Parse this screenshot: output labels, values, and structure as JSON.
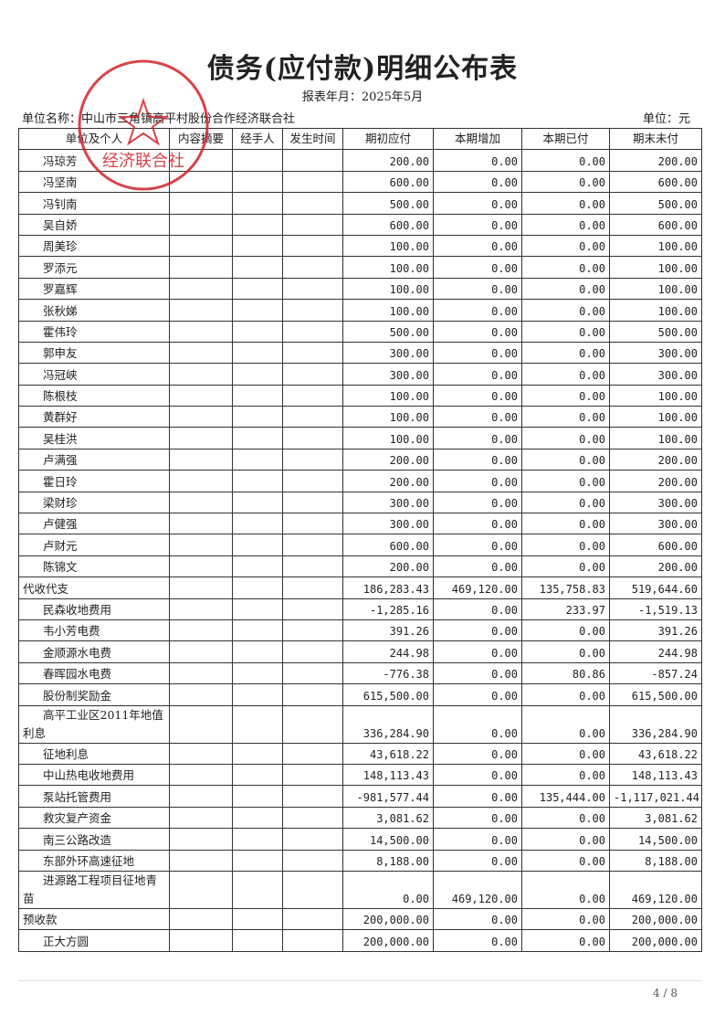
{
  "header": {
    "title": "债务(应付款)明细公布表",
    "period": "报表年月：2025年5月",
    "unit_name": "单位名称：中山市三角镇高平村股份合作经济联合社",
    "unit": "单位：元"
  },
  "seal": {
    "text": "经济联合社"
  },
  "table": {
    "columns": [
      "单位及个人",
      "内容摘要",
      "经手人",
      "发生时间",
      "期初应付",
      "本期增加",
      "本期已付",
      "期末未付"
    ],
    "continued_items": [
      {
        "name": "冯琼芳",
        "amounts": [
          "200.00",
          "0.00",
          "0.00",
          "200.00"
        ]
      },
      {
        "name": "冯坚南",
        "amounts": [
          "600.00",
          "0.00",
          "0.00",
          "600.00"
        ]
      },
      {
        "name": "冯钊南",
        "amounts": [
          "500.00",
          "0.00",
          "0.00",
          "500.00"
        ]
      },
      {
        "name": "吴自娇",
        "amounts": [
          "600.00",
          "0.00",
          "0.00",
          "600.00"
        ]
      },
      {
        "name": "周美珍",
        "amounts": [
          "100.00",
          "0.00",
          "0.00",
          "100.00"
        ]
      },
      {
        "name": "罗添元",
        "amounts": [
          "100.00",
          "0.00",
          "0.00",
          "100.00"
        ]
      },
      {
        "name": "罗嘉辉",
        "amounts": [
          "100.00",
          "0.00",
          "0.00",
          "100.00"
        ]
      },
      {
        "name": "张秋娣",
        "amounts": [
          "100.00",
          "0.00",
          "0.00",
          "100.00"
        ]
      },
      {
        "name": "霍伟玲",
        "amounts": [
          "500.00",
          "0.00",
          "0.00",
          "500.00"
        ]
      },
      {
        "name": "郭申友",
        "amounts": [
          "300.00",
          "0.00",
          "0.00",
          "300.00"
        ]
      },
      {
        "name": "冯冠峡",
        "amounts": [
          "300.00",
          "0.00",
          "0.00",
          "300.00"
        ]
      },
      {
        "name": "陈根枝",
        "amounts": [
          "100.00",
          "0.00",
          "0.00",
          "100.00"
        ]
      },
      {
        "name": "黄群好",
        "amounts": [
          "100.00",
          "0.00",
          "0.00",
          "100.00"
        ]
      },
      {
        "name": "吴桂洪",
        "amounts": [
          "100.00",
          "0.00",
          "0.00",
          "100.00"
        ]
      },
      {
        "name": "卢满强",
        "amounts": [
          "200.00",
          "0.00",
          "0.00",
          "200.00"
        ]
      },
      {
        "name": "霍日玲",
        "amounts": [
          "200.00",
          "0.00",
          "0.00",
          "200.00"
        ]
      },
      {
        "name": "梁财珍",
        "amounts": [
          "300.00",
          "0.00",
          "0.00",
          "300.00"
        ]
      },
      {
        "name": "卢健强",
        "amounts": [
          "300.00",
          "0.00",
          "0.00",
          "300.00"
        ]
      },
      {
        "name": "卢财元",
        "amounts": [
          "600.00",
          "0.00",
          "0.00",
          "600.00"
        ]
      },
      {
        "name": "陈锦文",
        "amounts": [
          "200.00",
          "0.00",
          "0.00",
          "200.00"
        ]
      }
    ],
    "sections": [
      {
        "name": "代收代支",
        "amounts": [
          "186,283.43",
          "469,120.00",
          "135,758.83",
          "519,644.60"
        ],
        "items": [
          {
            "name": "民森收地费用",
            "amounts": [
              "-1,285.16",
              "0.00",
              "233.97",
              "-1,519.13"
            ]
          },
          {
            "name": "韦小芳电费",
            "amounts": [
              "391.26",
              "0.00",
              "0.00",
              "391.26"
            ]
          },
          {
            "name": "金顺源水电费",
            "amounts": [
              "244.98",
              "0.00",
              "0.00",
              "244.98"
            ]
          },
          {
            "name": "春晖园水电费",
            "amounts": [
              "-776.38",
              "0.00",
              "80.86",
              "-857.24"
            ]
          },
          {
            "name": "股份制奖励金",
            "amounts": [
              "615,500.00",
              "0.00",
              "0.00",
              "615,500.00"
            ]
          },
          {
            "name": "高平工业区2011年地值利息",
            "amounts": [
              "336,284.90",
              "0.00",
              "0.00",
              "336,284.90"
            ]
          },
          {
            "name": "征地利息",
            "amounts": [
              "43,618.22",
              "0.00",
              "0.00",
              "43,618.22"
            ]
          },
          {
            "name": "中山热电收地费用",
            "amounts": [
              "148,113.43",
              "0.00",
              "0.00",
              "148,113.43"
            ]
          },
          {
            "name": "泵站托管费用",
            "amounts": [
              "-981,577.44",
              "0.00",
              "135,444.00",
              "-1,117,021.44"
            ]
          },
          {
            "name": "救灾复产资金",
            "amounts": [
              "3,081.62",
              "0.00",
              "0.00",
              "3,081.62"
            ]
          },
          {
            "name": "南三公路改造",
            "amounts": [
              "14,500.00",
              "0.00",
              "0.00",
              "14,500.00"
            ]
          },
          {
            "name": "东部外环高速征地",
            "amounts": [
              "8,188.00",
              "0.00",
              "0.00",
              "8,188.00"
            ]
          },
          {
            "name": "进源路工程项目征地青苗",
            "amounts": [
              "0.00",
              "469,120.00",
              "0.00",
              "469,120.00"
            ]
          }
        ]
      },
      {
        "name": "预收款",
        "amounts": [
          "200,000.00",
          "0.00",
          "0.00",
          "200,000.00"
        ],
        "items": [
          {
            "name": "正大方圆",
            "amounts": [
              "200,000.00",
              "0.00",
              "0.00",
              "200,000.00"
            ]
          }
        ]
      }
    ]
  },
  "footer": {
    "page": "4 / 8"
  }
}
